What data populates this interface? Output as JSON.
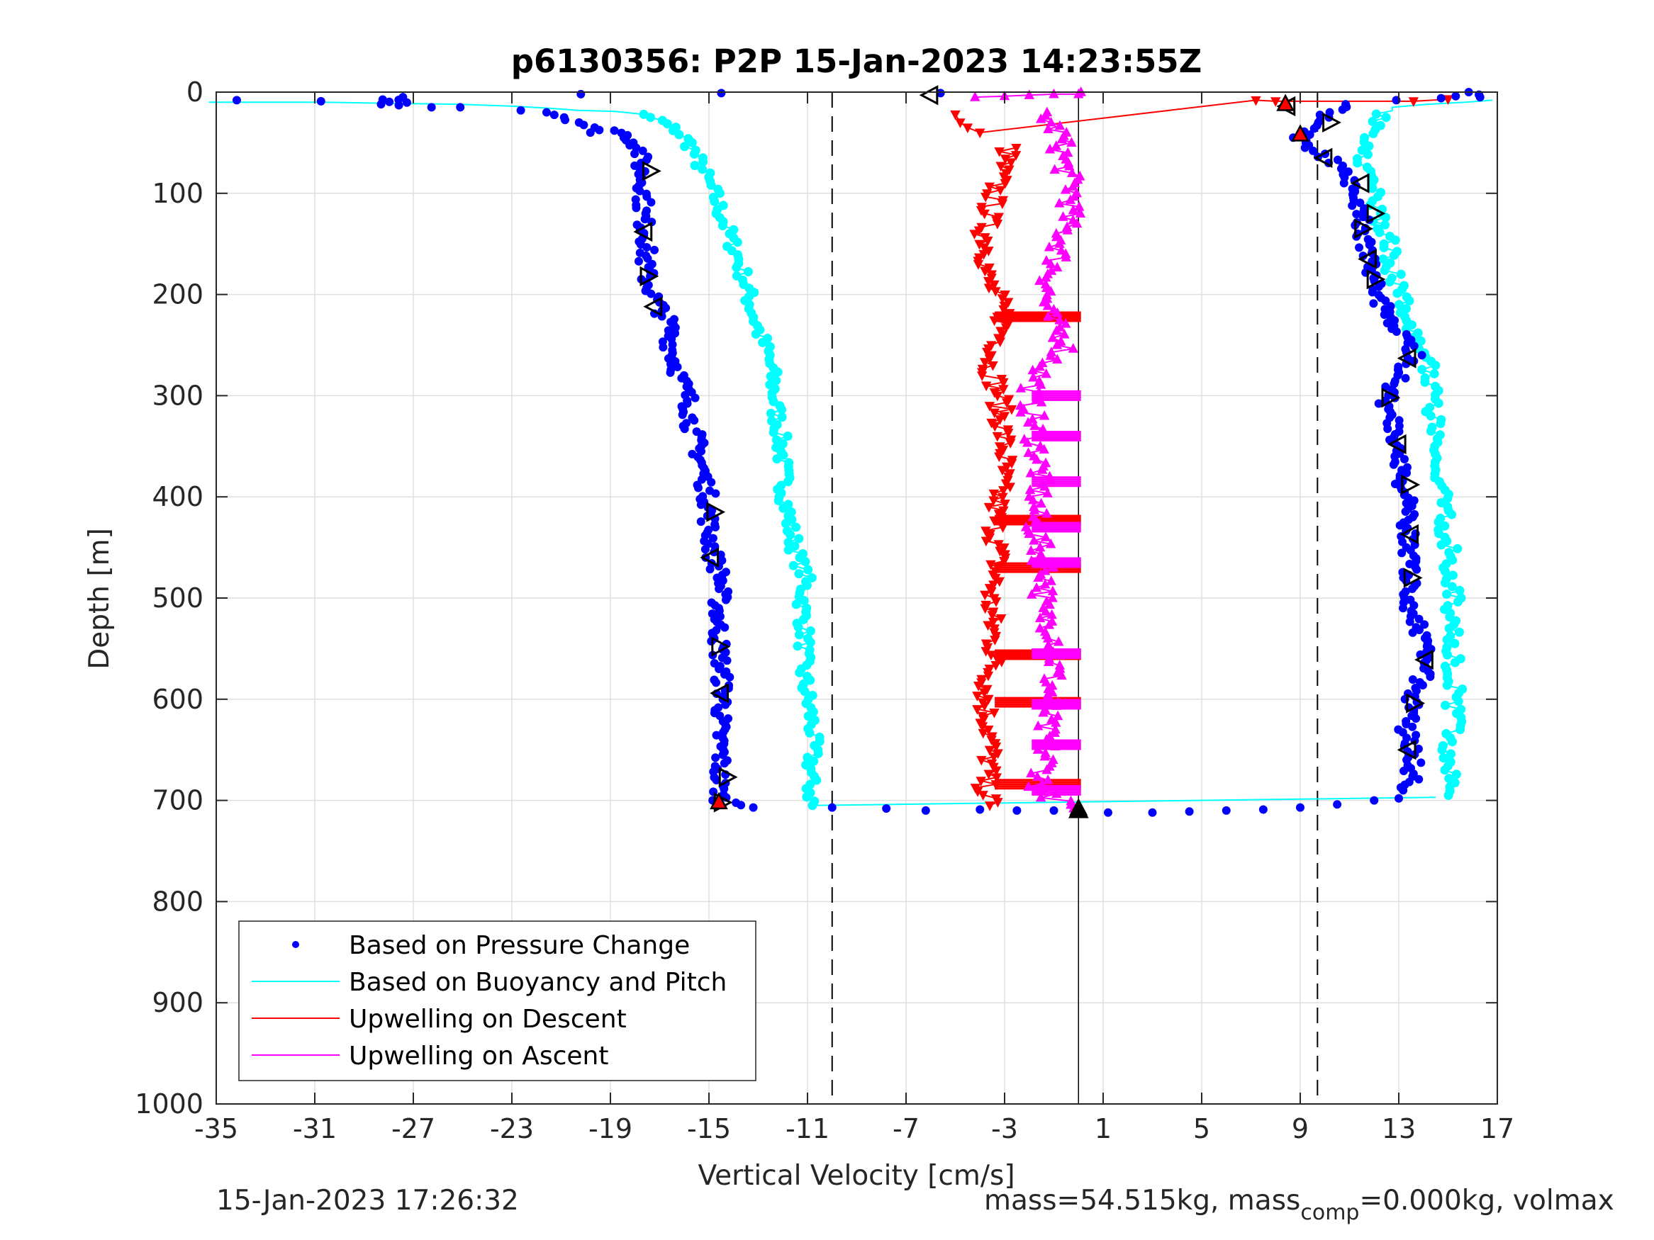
{
  "chart_data": {
    "type": "scatter",
    "title": "p6130356: P2P 15-Jan-2023 14:23:55Z",
    "xlabel": "Vertical Velocity [cm/s]",
    "ylabel": "Depth [m]",
    "xlim": [
      -35,
      17
    ],
    "ylim": [
      0,
      1000
    ],
    "y_reversed": true,
    "xticks": [
      -35,
      -31,
      -27,
      -23,
      -19,
      -15,
      -11,
      -7,
      -3,
      1,
      5,
      9,
      13,
      17
    ],
    "yticks": [
      0,
      100,
      200,
      300,
      400,
      500,
      600,
      700,
      800,
      900,
      1000
    ],
    "grid": true,
    "legend_position": "bottom-left",
    "reference_lines": {
      "dashed": [
        -10,
        9.7
      ],
      "solid": [
        0
      ]
    },
    "colors": {
      "pressure": "#0000ff",
      "buoyancy": "#00ffff",
      "upwelling_descent": "#ff0000",
      "upwelling_ascent": "#ff00ff"
    },
    "series": [
      {
        "name": "Based on Pressure Change",
        "style": "dots",
        "descent": [
          [
            -34.2,
            8
          ],
          [
            -31,
            9
          ],
          [
            -28.6,
            12
          ],
          [
            -27.6,
            5
          ],
          [
            -27.3,
            13
          ],
          [
            -26.2,
            15
          ],
          [
            -24.8,
            15
          ],
          [
            -22.5,
            18
          ],
          [
            -21.5,
            20
          ],
          [
            -20.8,
            25
          ],
          [
            -20.2,
            30
          ],
          [
            -19.5,
            40
          ],
          [
            -18.8,
            38
          ],
          [
            -18.2,
            45
          ],
          [
            -17.8,
            55
          ],
          [
            -17.8,
            70
          ],
          [
            -17.6,
            95
          ],
          [
            -17.7,
            120
          ],
          [
            -17.5,
            145
          ],
          [
            -17.6,
            170
          ],
          [
            -17.5,
            185
          ],
          [
            -17.2,
            205
          ],
          [
            -16.6,
            230
          ],
          [
            -16.5,
            255
          ],
          [
            -16.2,
            280
          ],
          [
            -15.8,
            305
          ],
          [
            -15.7,
            330
          ],
          [
            -15.4,
            355
          ],
          [
            -15.2,
            380
          ],
          [
            -15,
            405
          ],
          [
            -15,
            430
          ],
          [
            -14.8,
            460
          ],
          [
            -14.5,
            480
          ],
          [
            -14.6,
            510
          ],
          [
            -14.6,
            540
          ],
          [
            -14.5,
            570
          ],
          [
            -14.4,
            600
          ],
          [
            -14.6,
            630
          ],
          [
            -14.5,
            655
          ],
          [
            -14.6,
            680
          ],
          [
            -14.5,
            700
          ],
          [
            -13.2,
            707
          ]
        ],
        "bottom": [
          [
            -10,
            707
          ],
          [
            -7.8,
            708
          ],
          [
            -6.2,
            710
          ],
          [
            -4,
            709
          ],
          [
            -2.5,
            710
          ],
          [
            -1,
            710
          ],
          [
            0,
            711
          ],
          [
            1.2,
            712
          ],
          [
            3,
            712
          ],
          [
            4.5,
            711
          ],
          [
            6,
            710
          ],
          [
            7.5,
            709
          ],
          [
            9,
            707
          ],
          [
            10.5,
            704
          ],
          [
            12,
            700
          ],
          [
            13,
            698
          ]
        ],
        "ascent": [
          [
            13.4,
            690
          ],
          [
            13.6,
            660
          ],
          [
            13.3,
            630
          ],
          [
            13.6,
            600
          ],
          [
            14,
            575
          ],
          [
            14,
            545
          ],
          [
            13.5,
            510
          ],
          [
            13.5,
            480
          ],
          [
            13.3,
            450
          ],
          [
            13.4,
            420
          ],
          [
            13.2,
            390
          ],
          [
            13,
            360
          ],
          [
            12.8,
            330
          ],
          [
            12.5,
            305
          ],
          [
            13,
            280
          ],
          [
            13.6,
            260
          ],
          [
            13.2,
            245
          ],
          [
            12.5,
            220
          ],
          [
            12,
            195
          ],
          [
            11.8,
            170
          ],
          [
            11.6,
            140
          ],
          [
            11.5,
            115
          ],
          [
            11,
            90
          ],
          [
            10.4,
            70
          ],
          [
            9.4,
            55
          ],
          [
            9,
            45
          ],
          [
            9.6,
            30
          ],
          [
            10.2,
            20
          ],
          [
            11,
            12
          ],
          [
            13,
            8
          ],
          [
            14.5,
            6
          ],
          [
            15.3,
            4
          ],
          [
            16,
            0
          ],
          [
            16.3,
            5
          ]
        ],
        "outliers": [
          [
            -20.2,
            2
          ],
          [
            -14.5,
            1
          ],
          [
            -5.6,
            1
          ]
        ]
      },
      {
        "name": "Based on Buoyancy and Pitch",
        "style": "line+dots",
        "descent": [
          [
            -35,
            10
          ],
          [
            -31,
            10
          ],
          [
            -28,
            11
          ],
          [
            -25,
            12
          ],
          [
            -23,
            14
          ],
          [
            -21.5,
            16
          ],
          [
            -20.2,
            18
          ],
          [
            -19,
            19
          ],
          [
            -17.8,
            22
          ],
          [
            -17,
            28
          ],
          [
            -16.3,
            38
          ],
          [
            -15.8,
            50
          ],
          [
            -15.5,
            65
          ],
          [
            -15.2,
            80
          ],
          [
            -14.8,
            100
          ],
          [
            -14.5,
            120
          ],
          [
            -14.2,
            140
          ],
          [
            -13.8,
            165
          ],
          [
            -13.5,
            190
          ],
          [
            -13.3,
            210
          ],
          [
            -13,
            235
          ],
          [
            -12.6,
            260
          ],
          [
            -12.4,
            285
          ],
          [
            -12.3,
            310
          ],
          [
            -12.1,
            340
          ],
          [
            -12,
            370
          ],
          [
            -11.9,
            400
          ],
          [
            -11.7,
            430
          ],
          [
            -11.4,
            460
          ],
          [
            -11.1,
            480
          ],
          [
            -11.2,
            510
          ],
          [
            -11.1,
            540
          ],
          [
            -11.2,
            570
          ],
          [
            -11,
            600
          ],
          [
            -10.8,
            625
          ],
          [
            -10.8,
            650
          ],
          [
            -10.9,
            680
          ],
          [
            -10.8,
            705
          ]
        ],
        "ascent": [
          [
            15,
            695
          ],
          [
            15.2,
            670
          ],
          [
            14.9,
            650
          ],
          [
            15.3,
            630
          ],
          [
            15.2,
            610
          ],
          [
            15.3,
            590
          ],
          [
            15.2,
            560
          ],
          [
            15.1,
            530
          ],
          [
            15.2,
            500
          ],
          [
            15.1,
            470
          ],
          [
            15,
            440
          ],
          [
            14.8,
            410
          ],
          [
            14.6,
            385
          ],
          [
            14.3,
            350
          ],
          [
            14.4,
            320
          ],
          [
            14.3,
            295
          ],
          [
            14.2,
            270
          ],
          [
            13.7,
            250
          ],
          [
            13.4,
            230
          ],
          [
            13.2,
            210
          ],
          [
            12.8,
            180
          ],
          [
            12.6,
            150
          ],
          [
            12.2,
            120
          ],
          [
            11.9,
            95
          ],
          [
            11.6,
            70
          ],
          [
            11.8,
            45
          ],
          [
            12.2,
            25
          ],
          [
            12.8,
            15
          ],
          [
            14,
            12
          ],
          [
            15.6,
            10
          ],
          [
            16.8,
            8
          ]
        ],
        "bottom_link": [
          [
            -10.8,
            705
          ],
          [
            14.5,
            697
          ]
        ]
      },
      {
        "name": "Upwelling on Descent",
        "style": "line+down-triangles",
        "near_surface": [
          [
            -5,
            22
          ],
          [
            -4.8,
            30
          ],
          [
            -4.5,
            35
          ],
          [
            -4,
            40
          ],
          [
            7.2,
            8
          ],
          [
            8,
            9
          ],
          [
            13.6,
            9
          ],
          [
            15,
            7
          ]
        ],
        "values": [
          [
            -2.8,
            55
          ],
          [
            -3.2,
            80
          ],
          [
            -3.5,
            110
          ],
          [
            -3.8,
            140
          ],
          [
            -3.6,
            160
          ],
          [
            -3.8,
            180
          ],
          [
            -3.4,
            200
          ],
          [
            -3,
            222
          ],
          [
            -3.2,
            250
          ],
          [
            -3.6,
            270
          ],
          [
            -3.2,
            300
          ],
          [
            -3.1,
            330
          ],
          [
            -3,
            360
          ],
          [
            -3.2,
            390
          ],
          [
            -3.4,
            420
          ],
          [
            -3.3,
            450
          ],
          [
            -3.3,
            470
          ],
          [
            -3.6,
            500
          ],
          [
            -3.5,
            530
          ],
          [
            -3.4,
            556
          ],
          [
            -3.6,
            580
          ],
          [
            -3.8,
            603
          ],
          [
            -3.6,
            630
          ],
          [
            -3.6,
            660
          ],
          [
            -3.8,
            684
          ],
          [
            -3.6,
            705
          ]
        ],
        "spikes_depths": [
          222,
          423,
          470,
          556,
          603,
          684
        ]
      },
      {
        "name": "Upwelling on Ascent",
        "style": "line+up-triangles",
        "near_surface": [
          [
            -4.2,
            5
          ],
          [
            -3,
            4
          ],
          [
            -2,
            3
          ],
          [
            -1,
            2
          ],
          [
            0,
            2
          ],
          [
            0.1,
            0
          ]
        ],
        "values": [
          [
            -1.5,
            20
          ],
          [
            -0.8,
            40
          ],
          [
            -0.6,
            70
          ],
          [
            -0.2,
            100
          ],
          [
            -0.5,
            130
          ],
          [
            -0.8,
            160
          ],
          [
            -1.2,
            190
          ],
          [
            -1.4,
            215
          ],
          [
            -0.4,
            250
          ],
          [
            -1.5,
            275
          ],
          [
            -2,
            300
          ],
          [
            -1.8,
            330
          ],
          [
            -1.6,
            360
          ],
          [
            -1.6,
            390
          ],
          [
            -1.8,
            420
          ],
          [
            -1.6,
            450
          ],
          [
            -1.2,
            480
          ],
          [
            -1.6,
            510
          ],
          [
            -0.8,
            540
          ],
          [
            -1,
            570
          ],
          [
            -1.2,
            600
          ],
          [
            -1.4,
            630
          ],
          [
            -1.3,
            660
          ],
          [
            -1.6,
            690
          ],
          [
            -0.2,
            708
          ]
        ],
        "spikes_depths": [
          300,
          340,
          385,
          430,
          465,
          555,
          605,
          645,
          690
        ]
      }
    ],
    "markers": {
      "open_triangles": [
        [
          -17.4,
          78,
          "right"
        ],
        [
          -17.6,
          138,
          "left"
        ],
        [
          -17.5,
          182,
          "right"
        ],
        [
          -17.2,
          212,
          "left"
        ],
        [
          -14.8,
          415,
          "right"
        ],
        [
          -14.9,
          460,
          "left"
        ],
        [
          -14.6,
          548,
          "right"
        ],
        [
          -14.5,
          594,
          "left"
        ],
        [
          -14.3,
          677,
          "right"
        ],
        [
          -14.5,
          702,
          "right"
        ],
        [
          13.4,
          263,
          "left"
        ],
        [
          12.6,
          302,
          "right"
        ],
        [
          13,
          348,
          "left"
        ],
        [
          13.4,
          388,
          "right"
        ],
        [
          13.5,
          437,
          "left"
        ],
        [
          13.5,
          480,
          "right"
        ],
        [
          14.1,
          561,
          "left"
        ],
        [
          13.6,
          604,
          "right"
        ],
        [
          13.4,
          650,
          "left"
        ],
        [
          12,
          185,
          "right"
        ],
        [
          11.8,
          165,
          "left"
        ],
        [
          11.5,
          135,
          "right"
        ],
        [
          12,
          120,
          "right"
        ],
        [
          11.5,
          90,
          "left"
        ],
        [
          10,
          65,
          "left"
        ],
        [
          10.2,
          30,
          "right"
        ],
        [
          8.5,
          14,
          "left"
        ],
        [
          -6,
          3,
          "left"
        ]
      ],
      "red_triangles": [
        [
          -14.6,
          702
        ],
        [
          0,
          708
        ],
        [
          9,
          42
        ],
        [
          8.4,
          12
        ]
      ],
      "black_triangles": [
        [
          0,
          710
        ]
      ]
    }
  },
  "legend": [
    {
      "label": "Based on Pressure Change",
      "color": "#0000ff",
      "style": "dot"
    },
    {
      "label": "Based on Buoyancy and Pitch",
      "color": "#00ffff",
      "style": "line"
    },
    {
      "label": "Upwelling on Descent",
      "color": "#ff0000",
      "style": "line"
    },
    {
      "label": "Upwelling on Ascent",
      "color": "#ff00ff",
      "style": "line"
    }
  ],
  "footer": {
    "timestamp": "15-Jan-2023 17:26:32",
    "mass_prefix": "mass=54.515kg, mass",
    "mass_sub": "comp",
    "mass_suffix": "=0.000kg, volmax"
  }
}
